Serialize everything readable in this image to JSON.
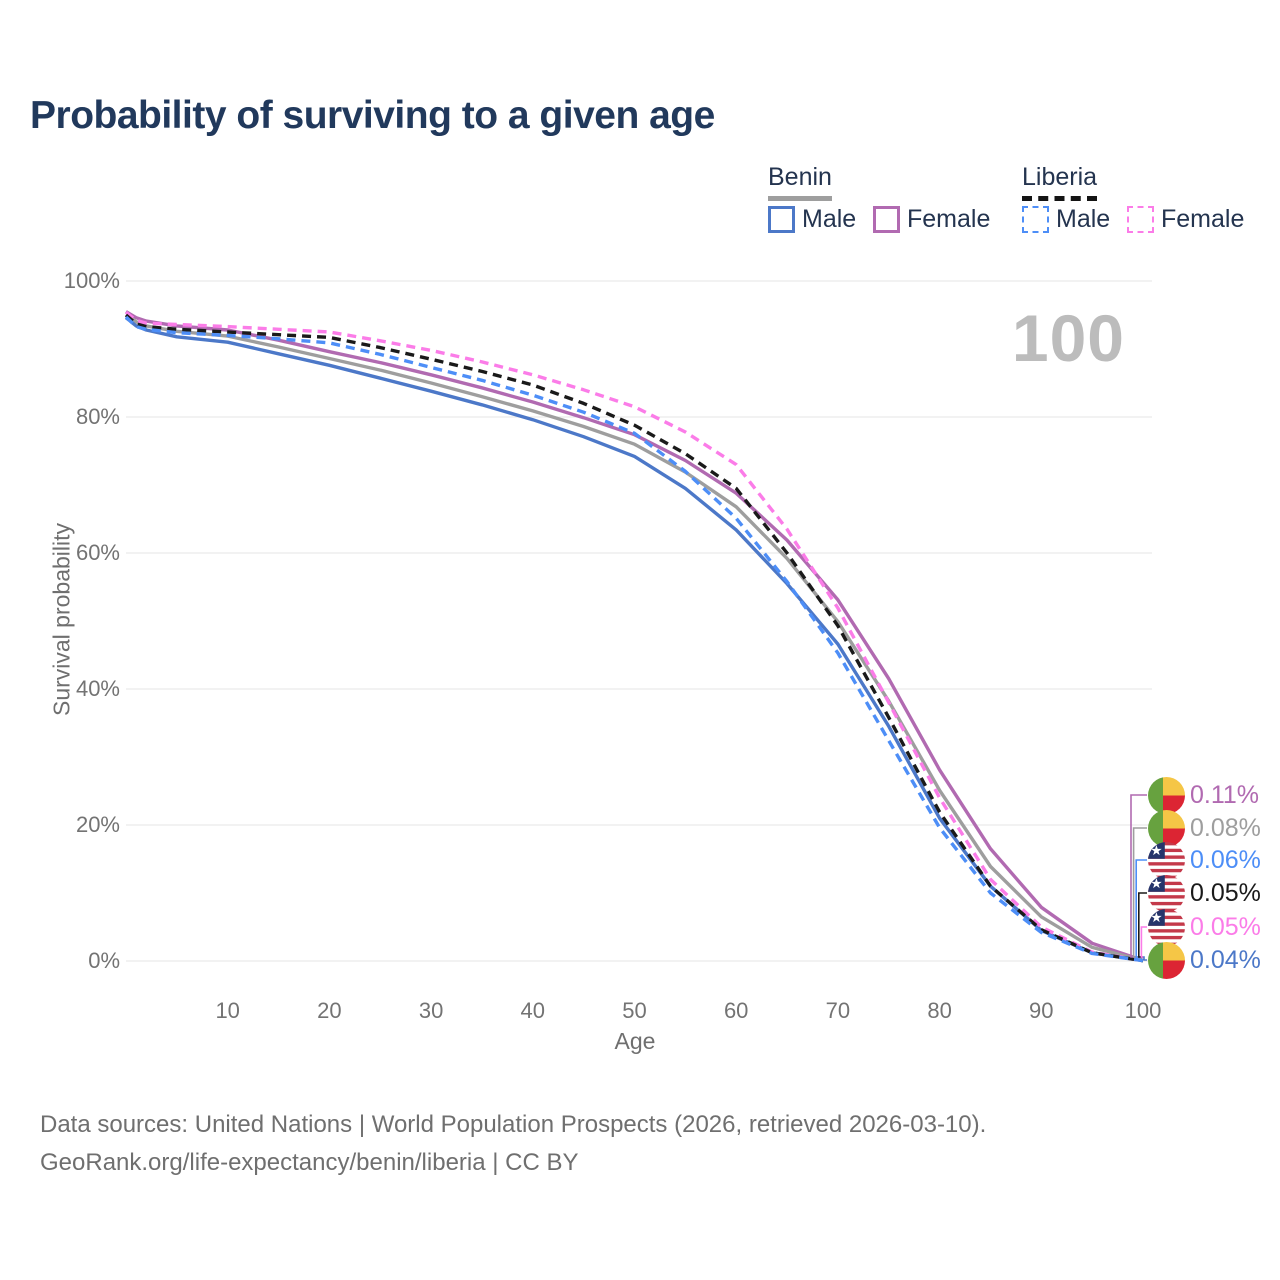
{
  "title": "Probability of surviving to a given age",
  "watermark": "100",
  "legend": {
    "benin_header": "Benin",
    "liberia_header": "Liberia",
    "benin_male_label": "Male",
    "benin_female_label": "Female",
    "liberia_male_label": "Male",
    "liberia_female_label": "Female",
    "benin_underline_color": "#9e9e9e",
    "liberia_underline_color": "#141414"
  },
  "colors": {
    "benin_male": "#4c78c8",
    "benin_female": "#b16ab1",
    "benin_total": "#9e9e9e",
    "liberia_male": "#4d8ef7",
    "liberia_female": "#fb7ce8",
    "liberia_total": "#1a1a1a",
    "grid": "#eaeaea",
    "title_text": "#21395c",
    "tick_text": "#737373",
    "watermark_text": "#bcbcbc"
  },
  "flags": {
    "benin": {
      "green": "#67a23f",
      "yellow": "#f5c646",
      "red": "#dc2533"
    },
    "liberia": {
      "red": "#c4394a",
      "white": "#ffffff",
      "blue": "#26356b"
    }
  },
  "chart_data": {
    "type": "line",
    "title": "Probability of surviving to a given age",
    "xlabel": "Age",
    "ylabel": "Survival probability",
    "xlim": [
      0,
      100
    ],
    "ylim": [
      0,
      100
    ],
    "grid": true,
    "legend_position": "top-right",
    "xticks": [
      {
        "v": 10,
        "label": "10"
      },
      {
        "v": 20,
        "label": "20"
      },
      {
        "v": 30,
        "label": "30"
      },
      {
        "v": 40,
        "label": "40"
      },
      {
        "v": 50,
        "label": "50"
      },
      {
        "v": 60,
        "label": "60"
      },
      {
        "v": 70,
        "label": "70"
      },
      {
        "v": 80,
        "label": "80"
      },
      {
        "v": 90,
        "label": "90"
      },
      {
        "v": 100,
        "label": "100"
      }
    ],
    "yticks": [
      {
        "v": 0,
        "label": "0%"
      },
      {
        "v": 20,
        "label": "20%"
      },
      {
        "v": 40,
        "label": "40%"
      },
      {
        "v": 60,
        "label": "60%"
      },
      {
        "v": 80,
        "label": "80%"
      },
      {
        "v": 100,
        "label": "100%"
      }
    ],
    "series": [
      {
        "name": "Benin Female",
        "country": "benin",
        "sex": "female",
        "style": "solid",
        "color": "#b16ab1",
        "points": [
          [
            0,
            95.5
          ],
          [
            1,
            94.6
          ],
          [
            2,
            94.1
          ],
          [
            5,
            93.4
          ],
          [
            10,
            92.8
          ],
          [
            15,
            91.3
          ],
          [
            20,
            89.6
          ],
          [
            25,
            88.0
          ],
          [
            30,
            86.2
          ],
          [
            35,
            84.3
          ],
          [
            40,
            82.2
          ],
          [
            45,
            79.9
          ],
          [
            50,
            77.4
          ],
          [
            55,
            73.6
          ],
          [
            60,
            68.8
          ],
          [
            65,
            61.9
          ],
          [
            70,
            53.1
          ],
          [
            75,
            41.5
          ],
          [
            80,
            28.1
          ],
          [
            85,
            16.5
          ],
          [
            90,
            7.9
          ],
          [
            95,
            2.6
          ],
          [
            100,
            0.11
          ]
        ]
      },
      {
        "name": "Benin",
        "country": "benin",
        "sex": "total",
        "style": "solid",
        "color": "#9e9e9e",
        "points": [
          [
            0,
            95.0
          ],
          [
            1,
            94.0
          ],
          [
            2,
            93.4
          ],
          [
            5,
            92.6
          ],
          [
            10,
            91.9
          ],
          [
            15,
            90.3
          ],
          [
            20,
            88.6
          ],
          [
            25,
            86.9
          ],
          [
            30,
            85.0
          ],
          [
            35,
            83.0
          ],
          [
            40,
            80.9
          ],
          [
            45,
            78.6
          ],
          [
            50,
            76.0
          ],
          [
            55,
            71.9
          ],
          [
            60,
            66.8
          ],
          [
            65,
            59.2
          ],
          [
            70,
            49.9
          ],
          [
            75,
            38.2
          ],
          [
            80,
            25.1
          ],
          [
            85,
            13.9
          ],
          [
            90,
            6.5
          ],
          [
            95,
            2.0
          ],
          [
            100,
            0.08
          ]
        ]
      },
      {
        "name": "Benin Male",
        "country": "benin",
        "sex": "male",
        "style": "solid",
        "color": "#4c78c8",
        "points": [
          [
            0,
            94.6
          ],
          [
            1,
            93.4
          ],
          [
            2,
            92.8
          ],
          [
            5,
            91.8
          ],
          [
            10,
            91.0
          ],
          [
            15,
            89.3
          ],
          [
            20,
            87.6
          ],
          [
            25,
            85.7
          ],
          [
            30,
            83.8
          ],
          [
            35,
            81.8
          ],
          [
            40,
            79.6
          ],
          [
            45,
            77.1
          ],
          [
            50,
            74.2
          ],
          [
            55,
            69.5
          ],
          [
            60,
            63.4
          ],
          [
            65,
            55.5
          ],
          [
            70,
            46.6
          ],
          [
            75,
            34.5
          ],
          [
            80,
            21.0
          ],
          [
            85,
            11.0
          ],
          [
            90,
            4.5
          ],
          [
            95,
            1.2
          ],
          [
            100,
            0.04
          ]
        ]
      },
      {
        "name": "Liberia Female",
        "country": "liberia",
        "sex": "female",
        "style": "dashed",
        "color": "#fb7ce8",
        "points": [
          [
            0,
            95.4
          ],
          [
            1,
            94.2
          ],
          [
            2,
            93.8
          ],
          [
            5,
            93.6
          ],
          [
            10,
            93.3
          ],
          [
            15,
            92.9
          ],
          [
            20,
            92.5
          ],
          [
            25,
            91.2
          ],
          [
            30,
            89.8
          ],
          [
            35,
            88.1
          ],
          [
            40,
            86.2
          ],
          [
            45,
            84.0
          ],
          [
            50,
            81.5
          ],
          [
            55,
            77.8
          ],
          [
            60,
            73.0
          ],
          [
            65,
            63.5
          ],
          [
            70,
            51.9
          ],
          [
            75,
            38.0
          ],
          [
            80,
            24.0
          ],
          [
            85,
            12.0
          ],
          [
            90,
            5.0
          ],
          [
            95,
            1.3
          ],
          [
            100,
            0.05
          ]
        ]
      },
      {
        "name": "Liberia",
        "country": "liberia",
        "sex": "total",
        "style": "dashed",
        "color": "#1a1a1a",
        "points": [
          [
            0,
            95.0
          ],
          [
            1,
            93.7
          ],
          [
            2,
            93.3
          ],
          [
            5,
            92.9
          ],
          [
            10,
            92.5
          ],
          [
            15,
            92.1
          ],
          [
            20,
            91.7
          ],
          [
            25,
            90.2
          ],
          [
            30,
            88.5
          ],
          [
            35,
            86.7
          ],
          [
            40,
            84.7
          ],
          [
            45,
            82.0
          ],
          [
            50,
            78.8
          ],
          [
            55,
            74.6
          ],
          [
            60,
            69.5
          ],
          [
            65,
            60.0
          ],
          [
            70,
            49.3
          ],
          [
            75,
            35.8
          ],
          [
            80,
            21.9
          ],
          [
            85,
            11.0
          ],
          [
            90,
            4.6
          ],
          [
            95,
            1.2
          ],
          [
            100,
            0.05
          ]
        ]
      },
      {
        "name": "Liberia Male",
        "country": "liberia",
        "sex": "male",
        "style": "dashed",
        "color": "#4d8ef7",
        "points": [
          [
            0,
            94.7
          ],
          [
            1,
            93.3
          ],
          [
            2,
            92.9
          ],
          [
            5,
            92.4
          ],
          [
            10,
            92.0
          ],
          [
            15,
            91.5
          ],
          [
            20,
            90.9
          ],
          [
            25,
            89.2
          ],
          [
            30,
            87.3
          ],
          [
            35,
            85.4
          ],
          [
            40,
            83.2
          ],
          [
            45,
            80.7
          ],
          [
            50,
            77.6
          ],
          [
            55,
            72.0
          ],
          [
            60,
            65.1
          ],
          [
            65,
            55.8
          ],
          [
            70,
            45.3
          ],
          [
            75,
            32.4
          ],
          [
            80,
            19.6
          ],
          [
            85,
            10.0
          ],
          [
            90,
            4.2
          ],
          [
            95,
            1.1
          ],
          [
            100,
            0.06
          ]
        ]
      }
    ],
    "end_labels": [
      {
        "country": "benin",
        "series": "Benin Female",
        "value": "0.11%",
        "color": "#b16ab1"
      },
      {
        "country": "benin",
        "series": "Benin",
        "value": "0.08%",
        "color": "#9e9e9e"
      },
      {
        "country": "liberia",
        "series": "Liberia Male",
        "value": "0.06%",
        "color": "#4d8ef7"
      },
      {
        "country": "liberia",
        "series": "Liberia",
        "value": "0.05%",
        "color": "#1a1a1a"
      },
      {
        "country": "liberia",
        "series": "Liberia Female",
        "value": "0.05%",
        "color": "#fb7ce8"
      },
      {
        "country": "benin",
        "series": "Benin Male",
        "value": "0.04%",
        "color": "#4c78c8"
      }
    ]
  },
  "footer": {
    "line1": "Data sources: United Nations | World Population Prospects (2026, retrieved 2026-03-10).",
    "line2": "GeoRank.org/life-expectancy/benin/liberia | CC BY"
  }
}
